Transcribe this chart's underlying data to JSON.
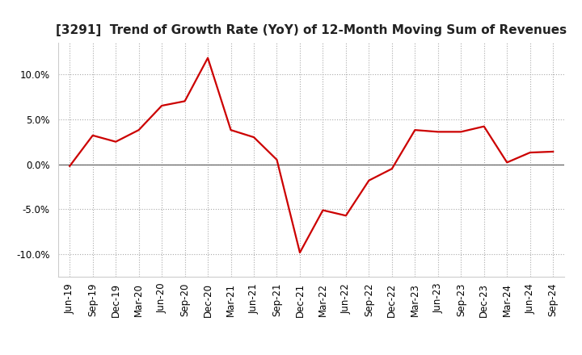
{
  "title": "[3291]  Trend of Growth Rate (YoY) of 12-Month Moving Sum of Revenues",
  "x_labels": [
    "Jun-19",
    "Sep-19",
    "Dec-19",
    "Mar-20",
    "Jun-20",
    "Sep-20",
    "Dec-20",
    "Mar-21",
    "Jun-21",
    "Sep-21",
    "Dec-21",
    "Mar-22",
    "Jun-22",
    "Sep-22",
    "Dec-22",
    "Mar-23",
    "Jun-23",
    "Sep-23",
    "Dec-23",
    "Mar-24",
    "Jun-24",
    "Sep-24"
  ],
  "y_values": [
    -0.2,
    3.2,
    2.5,
    3.8,
    6.5,
    7.0,
    11.8,
    3.8,
    3.0,
    0.5,
    -9.8,
    -5.1,
    -5.7,
    -1.8,
    -0.5,
    3.8,
    3.6,
    3.6,
    4.2,
    0.2,
    1.3,
    1.4
  ],
  "line_color": "#cc0000",
  "line_width": 1.6,
  "ylim": [
    -12.5,
    13.5
  ],
  "yticks": [
    -10.0,
    -5.0,
    0.0,
    5.0,
    10.0
  ],
  "grid_color": "#aaaaaa",
  "background_color": "#ffffff",
  "title_fontsize": 11,
  "axis_fontsize": 8.5
}
